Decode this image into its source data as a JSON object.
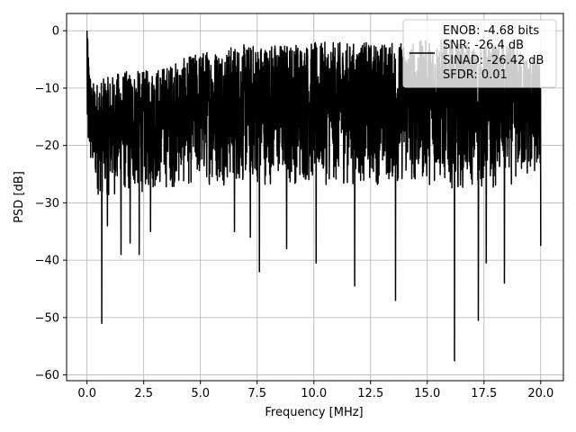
{
  "chart_data": {
    "type": "line",
    "xlabel": "Frequency [MHz]",
    "ylabel": "PSD [dB]",
    "xlim": [
      -0.9,
      21.0
    ],
    "ylim": [
      -61,
      3
    ],
    "xticks": [
      0.0,
      2.5,
      5.0,
      7.5,
      10.0,
      12.5,
      15.0,
      17.5,
      20.0
    ],
    "xtick_labels": [
      "0.0",
      "2.5",
      "5.0",
      "7.5",
      "10.0",
      "12.5",
      "15.0",
      "17.5",
      "20.0"
    ],
    "yticks": [
      0,
      -10,
      -20,
      -30,
      -40,
      -50,
      -60
    ],
    "ytick_labels": [
      "0",
      "−10",
      "−20",
      "−30",
      "−40",
      "−50",
      "−60"
    ],
    "grid": true,
    "legend_position": "top-right",
    "line_color": "#000000",
    "legend_entries": [
      "ENOB: -4.68 bits",
      "SNR: -26.4 dB",
      "SINAD: -26.42 dB",
      "SFDR: 0.01"
    ],
    "series": [
      {
        "description": "noise-like power spectral density, black line",
        "upper_envelope_db": [
          [
            0.0,
            0.0
          ],
          [
            0.2,
            -9
          ],
          [
            1.0,
            -8
          ],
          [
            1.5,
            -7
          ],
          [
            2.5,
            -7
          ],
          [
            3.5,
            -6
          ],
          [
            4.5,
            -4.5
          ],
          [
            5.0,
            -3.5
          ],
          [
            6.5,
            -2.5
          ],
          [
            7.5,
            -2.2
          ],
          [
            9.0,
            -2.0
          ],
          [
            10.0,
            -2.0
          ],
          [
            11.5,
            -2.0
          ],
          [
            13.0,
            -2.0
          ],
          [
            14.5,
            -1.8
          ],
          [
            15.5,
            -1.2
          ],
          [
            16.5,
            -2.0
          ],
          [
            17.0,
            -2.5
          ],
          [
            18.5,
            -2.3
          ],
          [
            20.0,
            -5.0
          ]
        ],
        "lower_envelope_db": [
          [
            0.0,
            -24
          ],
          [
            0.5,
            -29
          ],
          [
            1.5,
            -29
          ],
          [
            3.0,
            -28
          ],
          [
            5.0,
            -27
          ],
          [
            7.5,
            -27
          ],
          [
            10.0,
            -27
          ],
          [
            12.5,
            -27
          ],
          [
            15.0,
            -27
          ],
          [
            17.5,
            -28
          ],
          [
            20.0,
            -26
          ]
        ],
        "deep_nulls": [
          [
            0.65,
            -51
          ],
          [
            0.9,
            -34
          ],
          [
            1.5,
            -39
          ],
          [
            1.9,
            -37
          ],
          [
            2.3,
            -39
          ],
          [
            2.8,
            -35
          ],
          [
            6.5,
            -35
          ],
          [
            7.2,
            -36
          ],
          [
            7.6,
            -42
          ],
          [
            8.8,
            -38
          ],
          [
            10.1,
            -40.5
          ],
          [
            11.8,
            -44.5
          ],
          [
            13.6,
            -47
          ],
          [
            16.2,
            -57.5
          ],
          [
            17.25,
            -50.5
          ],
          [
            17.6,
            -40.5
          ],
          [
            18.4,
            -44
          ],
          [
            20.0,
            -37.5
          ]
        ]
      }
    ]
  }
}
